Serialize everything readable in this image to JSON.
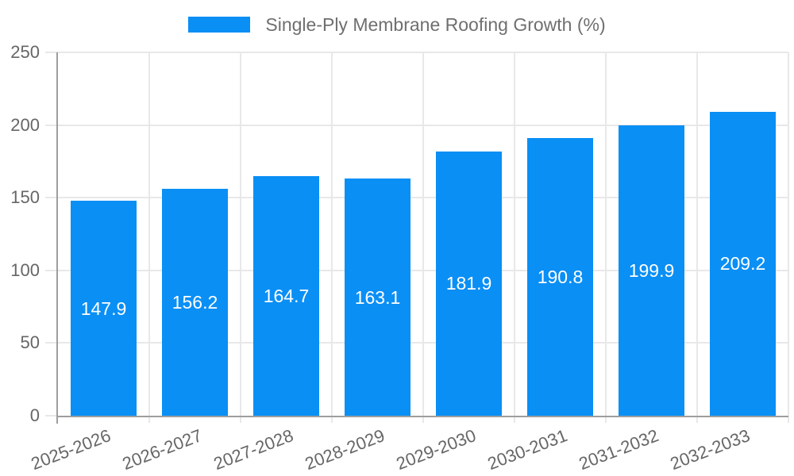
{
  "legend": {
    "label": "Single-Ply Membrane Roofing Growth (%)"
  },
  "colors": {
    "bar": "#0a8ff5",
    "axis": "#9e9e9e",
    "grid": "#e8e8e8",
    "tick_label": "#666666",
    "legend_text": "#6f6f6f",
    "value_label": "#ffffff",
    "background": "#ffffff"
  },
  "chart_data": {
    "type": "bar",
    "title": "Single-Ply Membrane Roofing Growth (%)",
    "categories": [
      "2025-2026",
      "2026-2027",
      "2027-2028",
      "2028-2029",
      "2029-2030",
      "2030-2031",
      "2031-2032",
      "2032-2033"
    ],
    "series": [
      {
        "name": "Single-Ply Membrane Roofing Growth (%)",
        "values": [
          147.9,
          156.2,
          164.7,
          163.1,
          181.9,
          190.8,
          199.9,
          209.2
        ]
      }
    ],
    "value_labels": [
      "147.9",
      "156.2",
      "164.7",
      "163.1",
      "181.9",
      "190.8",
      "199.9",
      "209.2"
    ],
    "xlabel": "",
    "ylabel": "",
    "ylim": [
      0,
      250
    ],
    "yticks": [
      0,
      50,
      100,
      150,
      200,
      250
    ],
    "grid": true,
    "legend_position": "top",
    "x_tick_rotation_deg": -21,
    "bar_width_fraction": 0.72
  }
}
